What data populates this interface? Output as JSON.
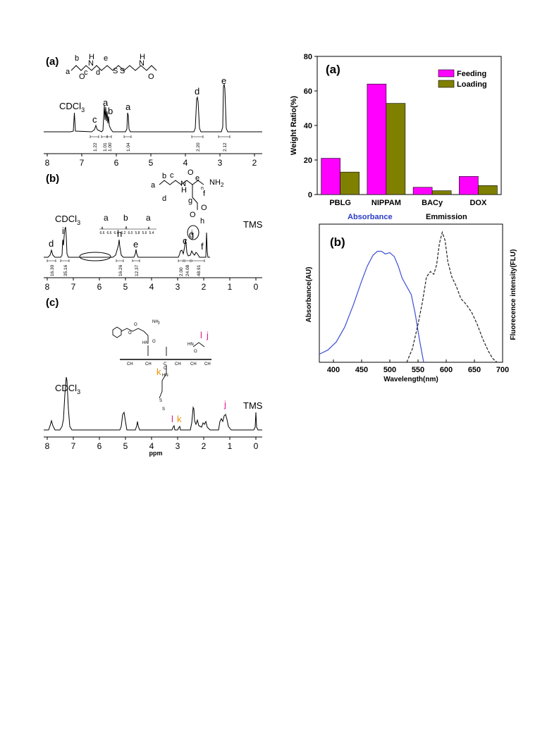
{
  "nmr": {
    "panels": [
      {
        "label": "(a)",
        "solvent": "CDCl",
        "solvent_sub": "3",
        "peak_labels": [
          "c",
          "a",
          "b",
          "a",
          "d",
          "e"
        ],
        "integrals": [
          "1.22",
          "1.01",
          "1.00",
          "1.04",
          "2.20",
          "2.12"
        ],
        "ticks": [
          "8",
          "7",
          "6",
          "5",
          "4",
          "3",
          "2"
        ],
        "structure_labels": [
          "a",
          "b",
          "c",
          "d",
          "e",
          "O",
          "H",
          "N",
          "O",
          "S",
          "S",
          "H",
          "N",
          "O"
        ]
      },
      {
        "label": "(b)",
        "solvent": "CDCl",
        "solvent_sub": "3",
        "reference": "TMS",
        "peak_labels": [
          "d",
          "i",
          "h",
          "e",
          "c",
          "g",
          "f"
        ],
        "integrals": [
          "16.30",
          "35.16",
          "16.26",
          "12.37",
          "2.00",
          "24.08",
          "48.91"
        ],
        "inset_labels": [
          "a",
          "b",
          "a"
        ],
        "inset_ticks": [
          "6.6",
          "6.6",
          "6.4",
          "6.2",
          "6.0",
          "5.8",
          "5.6",
          "5.4"
        ],
        "ticks": [
          "8",
          "7",
          "6",
          "5",
          "4",
          "3",
          "2",
          "1",
          "0"
        ],
        "structure_labels": [
          "a",
          "b",
          "c",
          "e",
          "N",
          "H",
          "O",
          "NH",
          "2",
          "f",
          "d",
          "g",
          "O",
          "O",
          "h",
          "i",
          "n"
        ]
      },
      {
        "label": "(c)",
        "solvent": "CDCl",
        "solvent_sub": "3",
        "reference": "TMS",
        "peak_labels": [
          "l",
          "k",
          "j"
        ],
        "ticks": [
          "8",
          "7",
          "6",
          "5",
          "4",
          "3",
          "2",
          "1",
          "0"
        ],
        "xlabel": "ppm",
        "structure_labels": [
          "NH",
          "2",
          "O",
          "O",
          "HN",
          "O",
          "HN",
          "l",
          "j",
          "O",
          "HN",
          "k",
          "CH",
          "CH",
          "CH",
          "C",
          "CH",
          "CH",
          "2",
          "2",
          "2",
          "2",
          "S",
          "S",
          "O"
        ]
      }
    ]
  },
  "chart_data": [
    {
      "type": "bar",
      "panel_label": "(a)",
      "categories": [
        "PBLG",
        "NIPPAM",
        "BACy",
        "DOX"
      ],
      "series": [
        {
          "name": "Feeding",
          "values": [
            21,
            64,
            4.2,
            10.5
          ]
        },
        {
          "name": "Loading",
          "values": [
            13,
            52.8,
            2.2,
            5.2
          ]
        }
      ],
      "xlabel": "",
      "ylabel": "Weight Ratio(%)",
      "ylim": [
        0,
        80
      ],
      "yticks": [
        "0",
        "20",
        "40",
        "60",
        "80"
      ],
      "legend": "top-right",
      "colors": {
        "Feeding": "#ff00ff",
        "Loading": "#808000"
      }
    },
    {
      "type": "line",
      "panel_label": "(b)",
      "titles": {
        "left": "Absorbance",
        "right": "Emmission"
      },
      "xlabel": "Wavelength(nm)",
      "ylabel_left": "Absorbance(AU)",
      "ylabel_right": "Fluorecence intensity(FLU)",
      "xlim": [
        375,
        700
      ],
      "xticks": [
        "400",
        "450",
        "500",
        "550",
        "600",
        "650",
        "700"
      ],
      "series": [
        {
          "style": "solid",
          "color": "#3f4fd6",
          "x": [
            375,
            390,
            405,
            420,
            435,
            450,
            460,
            470,
            478,
            485,
            492,
            500,
            508,
            515,
            522,
            530,
            538,
            545,
            552,
            560
          ],
          "y": [
            0.06,
            0.09,
            0.15,
            0.26,
            0.42,
            0.6,
            0.71,
            0.79,
            0.82,
            0.82,
            0.8,
            0.81,
            0.78,
            0.71,
            0.62,
            0.56,
            0.5,
            0.36,
            0.18,
            0.0
          ]
        },
        {
          "style": "dashed",
          "color": "#222222",
          "x": [
            530,
            540,
            550,
            558,
            565,
            572,
            578,
            583,
            588,
            593,
            598,
            603,
            610,
            618,
            626,
            635,
            645,
            655,
            665,
            675,
            682,
            690
          ],
          "y": [
            0.0,
            0.1,
            0.28,
            0.45,
            0.63,
            0.67,
            0.65,
            0.72,
            0.88,
            0.96,
            0.9,
            0.74,
            0.63,
            0.56,
            0.47,
            0.43,
            0.37,
            0.28,
            0.17,
            0.08,
            0.03,
            0.0
          ]
        }
      ]
    }
  ],
  "colors": {
    "feeding": "#ff00ff",
    "loading": "#808000",
    "absorbance_title": "#2b3cc8",
    "label_l": "#e0189c",
    "label_j": "#e0189c",
    "label_k": "#f09000"
  }
}
